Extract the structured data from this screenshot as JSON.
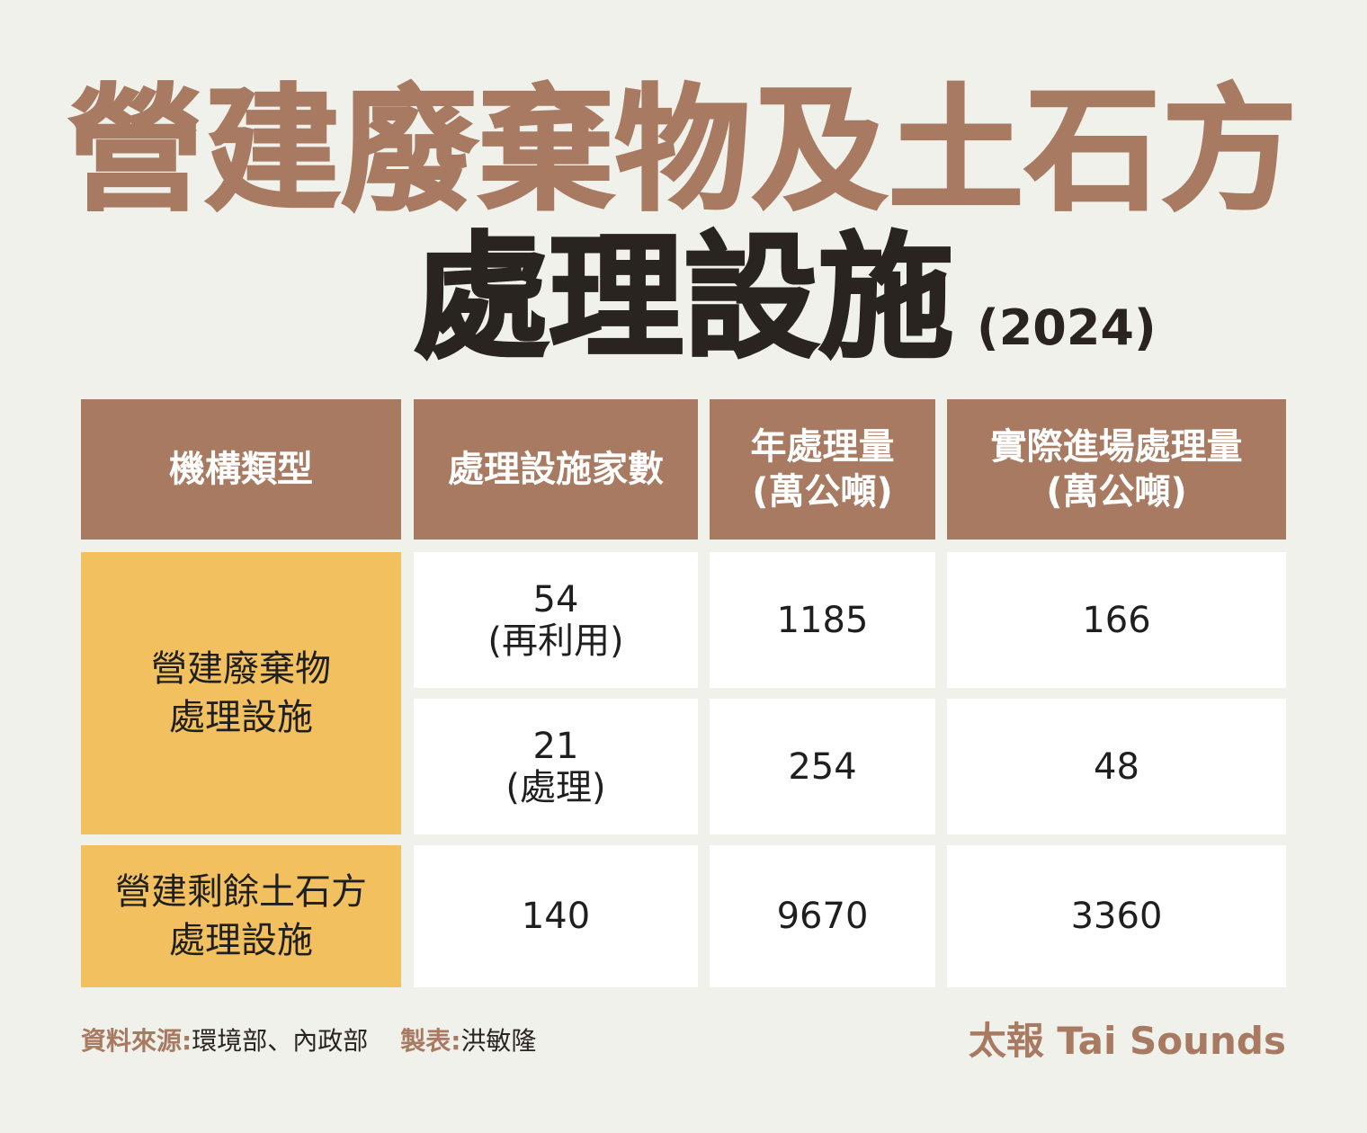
{
  "title": {
    "line1": "營建廢棄物及土石方",
    "line2": "處理設施",
    "year": "(2024)"
  },
  "colors": {
    "accent_brown": "#a97a62",
    "category_yellow": "#f2c05f",
    "cell_white": "#ffffff",
    "background": "#f1f1ec",
    "title_dark": "#2a2421"
  },
  "chart_data": {
    "type": "table",
    "columns": [
      {
        "line1": "機構類型",
        "line2": ""
      },
      {
        "line1": "處理設施家數",
        "line2": ""
      },
      {
        "line1": "年處理量",
        "line2": "(萬公噸)"
      },
      {
        "line1": "實際進場處理量",
        "line2": "(萬公噸)"
      }
    ],
    "rows": [
      {
        "category": "營建廢棄物\n處理設施",
        "count": "54",
        "count_note": "(再利用)",
        "annual": "1185",
        "actual": "166"
      },
      {
        "category": "營建廢棄物\n處理設施",
        "count": "21",
        "count_note": "(處理)",
        "annual": "254",
        "actual": "48"
      },
      {
        "category": "營建剩餘土石方\n處理設施",
        "count": "140",
        "count_note": "",
        "annual": "9670",
        "actual": "3360"
      }
    ]
  },
  "table": {
    "categories": [
      {
        "line1": "營建廢棄物",
        "line2": "處理設施"
      },
      {
        "line1": "營建剩餘土石方",
        "line2": "處理設施"
      }
    ]
  },
  "footer": {
    "source_label": "資料來源:",
    "source_value": "環境部、內政部",
    "maker_label": "製表:",
    "maker_value": "洪敏隆",
    "brand": "太報 Tai Sounds"
  }
}
